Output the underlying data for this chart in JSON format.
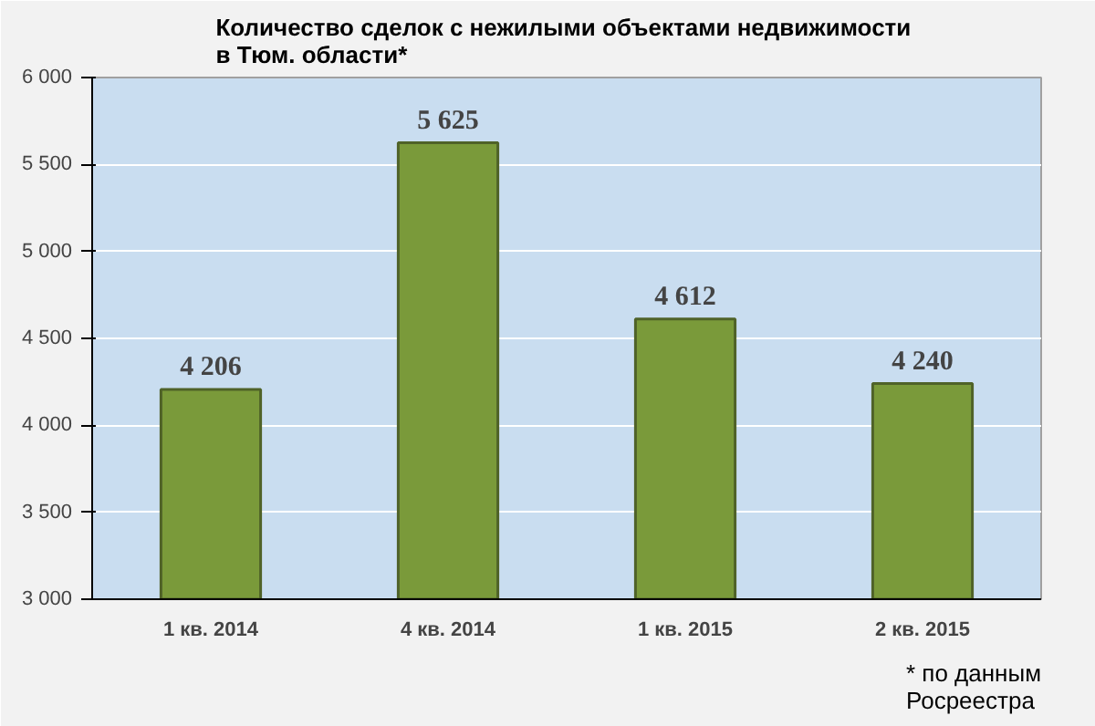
{
  "chart_data": {
    "type": "bar",
    "title": "Количество сделок  с нежилыми объектами недвижимости\nв Тюм. области*",
    "categories": [
      "1 кв. 2014",
      "4 кв. 2014",
      "1 кв. 2015",
      "2 кв. 2015"
    ],
    "values": [
      4206,
      5625,
      4612,
      4240
    ],
    "value_labels": [
      "4 206",
      "5 625",
      "4 612",
      "4 240"
    ],
    "color": "#7a9a3a",
    "ylim": [
      3000,
      6000
    ],
    "yticks": [
      {
        "value": 3000,
        "label": "3 000"
      },
      {
        "value": 3500,
        "label": "3 500"
      },
      {
        "value": 4000,
        "label": "4 000"
      },
      {
        "value": 4500,
        "label": "4 500"
      },
      {
        "value": 5000,
        "label": "5 000"
      },
      {
        "value": 5500,
        "label": "5 500"
      },
      {
        "value": 6000,
        "label": "6 000"
      }
    ],
    "grid": "y",
    "annotations": [
      "* по данным\nРосреестра"
    ]
  }
}
